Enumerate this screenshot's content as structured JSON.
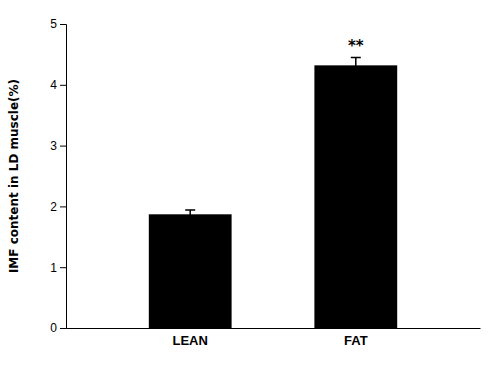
{
  "chart_data": {
    "type": "bar",
    "categories": [
      "LEAN",
      "FAT"
    ],
    "values": [
      1.87,
      4.32
    ],
    "errors": [
      0.07,
      0.13
    ],
    "color": "#000000",
    "ylabel": "IMF content in LD muscle(%)",
    "ylim": [
      0,
      5
    ],
    "yticks": [
      0,
      1,
      2,
      3,
      4,
      5
    ],
    "annotations": [
      {
        "text": "**",
        "category": "FAT"
      }
    ],
    "grid": false
  }
}
